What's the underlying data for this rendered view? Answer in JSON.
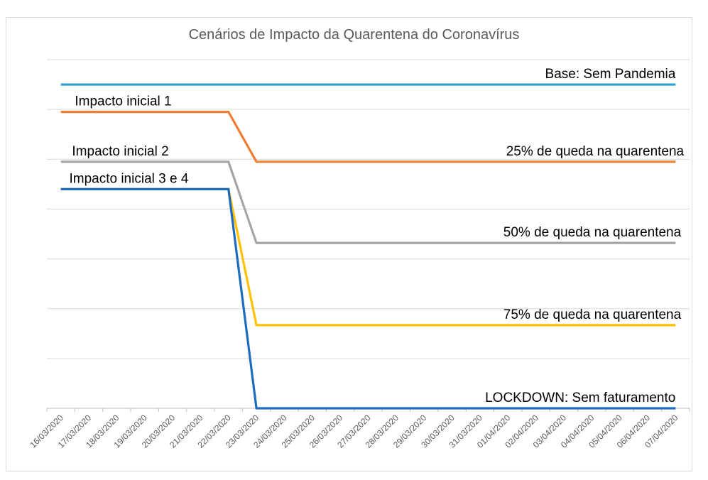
{
  "chart_data": {
    "type": "line",
    "title": "Cenários de Impacto da Quarentena do Coronavírus",
    "xlabel": "",
    "ylabel": "",
    "categories": [
      "16/03/2020",
      "17/03/2020",
      "18/03/2020",
      "19/03/2020",
      "20/03/2020",
      "21/03/2020",
      "22/03/2020",
      "23/03/2020",
      "24/03/2020",
      "25/03/2020",
      "26/03/2020",
      "27/03/2020",
      "28/03/2020",
      "29/03/2020",
      "30/03/2020",
      "31/03/2020",
      "01/04/2020",
      "02/04/2020",
      "03/04/2020",
      "04/04/2020",
      "05/04/2020",
      "06/04/2020",
      "07/04/2020"
    ],
    "ylim": [
      0,
      7
    ],
    "grid": true,
    "legend": "none",
    "series": [
      {
        "color": "#2e9fd1",
        "values": [
          6.5,
          6.5,
          6.5,
          6.5,
          6.5,
          6.5,
          6.5,
          6.5,
          6.5,
          6.5,
          6.5,
          6.5,
          6.5,
          6.5,
          6.5,
          6.5,
          6.5,
          6.5,
          6.5,
          6.5,
          6.5,
          6.5,
          6.5
        ]
      },
      {
        "color": "#ed7d31",
        "values": [
          5.95,
          5.95,
          5.95,
          5.95,
          5.95,
          5.95,
          5.95,
          4.95,
          4.95,
          4.95,
          4.95,
          4.95,
          4.95,
          4.95,
          4.95,
          4.95,
          4.95,
          4.95,
          4.95,
          4.95,
          4.95,
          4.95,
          4.95
        ]
      },
      {
        "color": "#a5a5a5",
        "values": [
          4.95,
          4.95,
          4.95,
          4.95,
          4.95,
          4.95,
          4.95,
          3.32,
          3.32,
          3.32,
          3.32,
          3.32,
          3.32,
          3.32,
          3.32,
          3.32,
          3.32,
          3.32,
          3.32,
          3.32,
          3.32,
          3.32,
          3.32
        ]
      },
      {
        "color": "#ffc000",
        "values": [
          4.4,
          4.4,
          4.4,
          4.4,
          4.4,
          4.4,
          4.4,
          1.67,
          1.67,
          1.67,
          1.67,
          1.67,
          1.67,
          1.67,
          1.67,
          1.67,
          1.67,
          1.67,
          1.67,
          1.67,
          1.67,
          1.67,
          1.67
        ]
      },
      {
        "color": "#1f6cbf",
        "values": [
          4.4,
          4.4,
          4.4,
          4.4,
          4.4,
          4.4,
          4.4,
          0,
          0,
          0,
          0,
          0,
          0,
          0,
          0,
          0,
          0,
          0,
          0,
          0,
          0,
          0,
          0
        ]
      }
    ],
    "annotations": [
      {
        "text": "Base: Sem Pandemia",
        "x": 22,
        "y": 6.5,
        "align": "right"
      },
      {
        "text": "Impacto inicial 1",
        "x": 0.5,
        "y": 5.95,
        "align": "left"
      },
      {
        "text": "Impacto inicial 2",
        "x": 0.4,
        "y": 4.95,
        "align": "left"
      },
      {
        "text": "Impacto inicial 3 e 4",
        "x": 0.3,
        "y": 4.4,
        "align": "left"
      },
      {
        "text": "25% de queda na quarentena",
        "x": 22.3,
        "y": 4.95,
        "align": "right"
      },
      {
        "text": "50% de queda na quarentena",
        "x": 22.2,
        "y": 3.32,
        "align": "right"
      },
      {
        "text": "75% de queda na quarentena",
        "x": 22.2,
        "y": 1.67,
        "align": "right"
      },
      {
        "text": "LOCKDOWN: Sem faturamento",
        "x": 22.0,
        "y": 0,
        "align": "right"
      }
    ]
  }
}
